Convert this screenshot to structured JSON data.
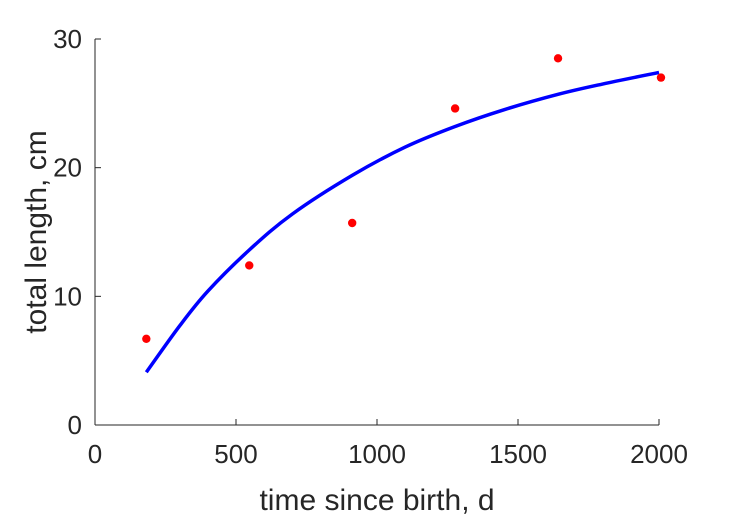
{
  "chart_data": {
    "type": "scatter",
    "title": "",
    "xlabel": "time since birth, d",
    "ylabel": "total length, cm",
    "xlim": [
      0,
      2000
    ],
    "ylim": [
      0,
      30
    ],
    "xticks": [
      0,
      500,
      1000,
      1500,
      2000
    ],
    "yticks": [
      0,
      10,
      20,
      30
    ],
    "grid": false,
    "box": "left-bottom",
    "series": [
      {
        "kind": "points",
        "color": "#ff0000",
        "x": [
          182,
          547,
          912,
          1277,
          1642,
          2007
        ],
        "y": [
          6.7,
          12.4,
          15.7,
          24.6,
          28.5,
          27.0
        ]
      },
      {
        "kind": "fitted-curve",
        "color": "#0000ff",
        "x": [
          182,
          300,
          400,
          547,
          700,
          912,
          1100,
          1277,
          1450,
          1642,
          1800,
          2000
        ],
        "y": [
          4.1,
          7.7,
          10.4,
          13.6,
          16.4,
          19.4,
          21.6,
          23.2,
          24.5,
          25.7,
          26.5,
          27.4
        ]
      }
    ]
  }
}
